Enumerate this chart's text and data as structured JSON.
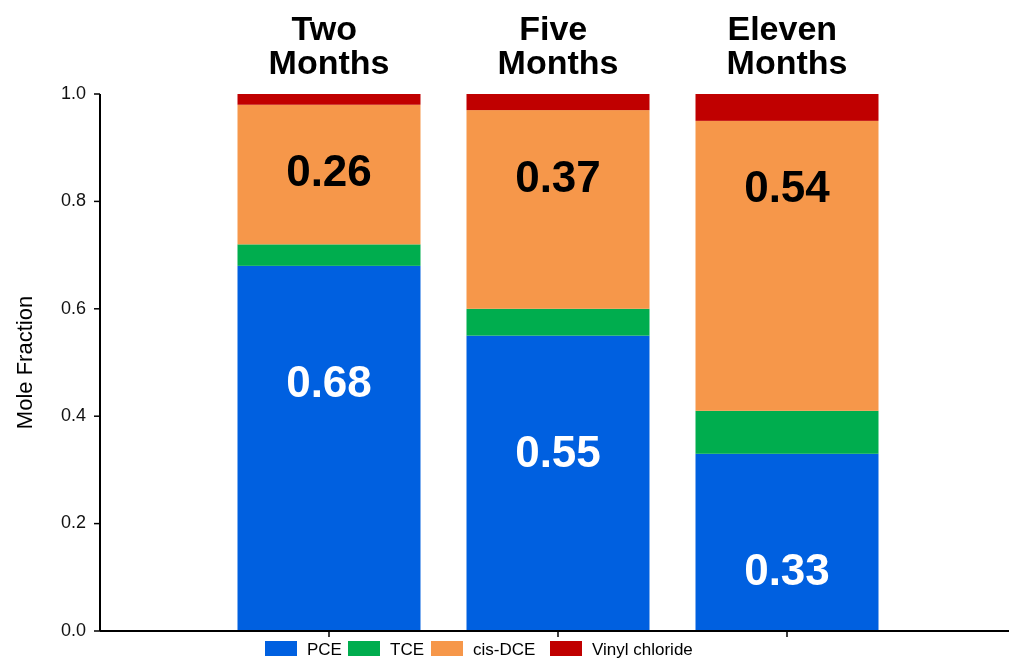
{
  "chart_data": {
    "type": "bar",
    "stacked": true,
    "ylabel": "Mole Fraction",
    "categories": [
      "Two Months",
      "Five Months",
      "Eleven Months"
    ],
    "ylim": [
      0,
      1
    ],
    "yticks": [
      {
        "value": 0,
        "label": "0.0"
      },
      0.2,
      0.4,
      0.6,
      0.8,
      {
        "value": 1,
        "label": "1.0"
      }
    ],
    "legend": "bottom",
    "series": [
      {
        "name": "PCE",
        "color": "#0060e0",
        "values": [
          0.68,
          0.55,
          0.33
        ],
        "value_labels": [
          "0.68",
          "0.55",
          "0.33"
        ]
      },
      {
        "name": "TCE",
        "color": "#00ad4e",
        "values": [
          0.04,
          0.05,
          0.08
        ]
      },
      {
        "name": "cis-DCE",
        "color": "#f6974a",
        "values": [
          0.26,
          0.37,
          0.54
        ],
        "value_labels": [
          "0.26",
          "0.37",
          "0.54"
        ]
      },
      {
        "name": "Vinyl chloride",
        "color": "#c00000",
        "values": [
          0.02,
          0.03,
          0.05
        ]
      }
    ]
  }
}
